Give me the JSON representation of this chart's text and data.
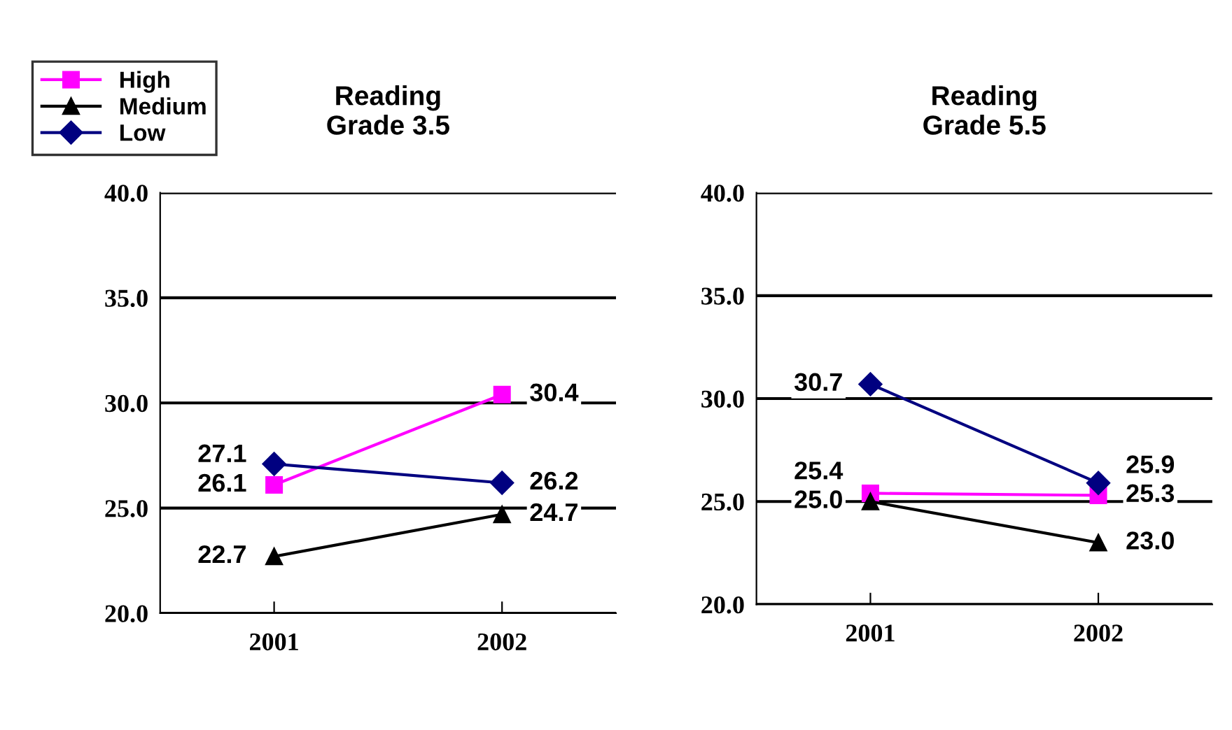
{
  "chart_data": [
    {
      "type": "line",
      "title": "Reading\nGrade 3.5",
      "categories": [
        "2001",
        "2002"
      ],
      "ylim": [
        20,
        40
      ],
      "yticks": [
        {
          "value": 20,
          "label": "20.0"
        },
        {
          "value": 25,
          "label": "25.0"
        },
        {
          "value": 30,
          "label": "30.0"
        },
        {
          "value": 35,
          "label": "35.0"
        },
        {
          "value": 40,
          "label": "40.0"
        }
      ],
      "grid": "y",
      "legend": "top left",
      "data_labels": true,
      "series": [
        {
          "name": "High",
          "color": "#ff00ff",
          "marker": "square",
          "values": [
            26.1,
            30.4
          ]
        },
        {
          "name": "Medium",
          "color": "#000000",
          "marker": "triangle",
          "values": [
            22.7,
            24.7
          ],
          "value_labels": [
            "22.7",
            "24.7"
          ]
        },
        {
          "name": "Low",
          "color": "#000080",
          "marker": "diamond",
          "values": [
            27.1,
            26.2
          ]
        }
      ]
    },
    {
      "type": "line",
      "title": "Reading\nGrade 5.5",
      "categories": [
        "2001",
        "2002"
      ],
      "ylim": [
        20,
        40
      ],
      "yticks": [
        {
          "value": 20,
          "label": "20.0"
        },
        {
          "value": 25,
          "label": "25.0"
        },
        {
          "value": 30,
          "label": "30.0"
        },
        {
          "value": 35,
          "label": "35.0"
        },
        {
          "value": 40,
          "label": "40.0"
        }
      ],
      "grid": "y",
      "data_labels": true,
      "series": [
        {
          "color": "#ff00ff",
          "marker": "square",
          "values": [
            25.4,
            25.3
          ],
          "value_labels": [
            "25.4",
            "25.3"
          ]
        },
        {
          "color": "#000000",
          "marker": "triangle",
          "values": [
            25.0,
            23.0
          ],
          "value_labels": [
            "25.0",
            "23.0"
          ]
        },
        {
          "color": "#000080",
          "marker": "diamond",
          "values": [
            30.7,
            25.9
          ],
          "value_labels": [
            "30.7",
            "25.9"
          ]
        }
      ]
    }
  ]
}
